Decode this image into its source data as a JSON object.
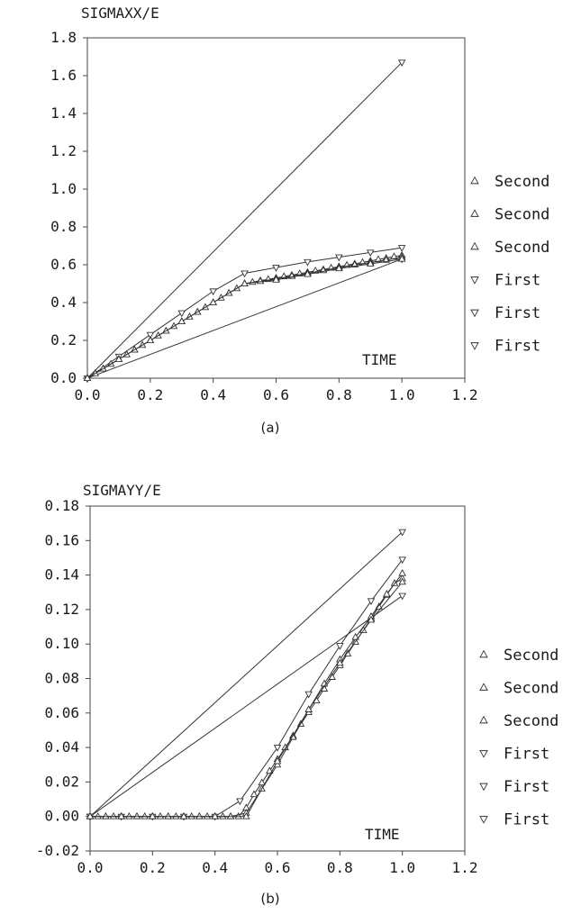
{
  "charts": [
    {
      "ylabel": "SIGMAXX/E",
      "xlabel": "TIME",
      "caption": "(a)",
      "xticks": [
        "0.0",
        "0.2",
        "0.4",
        "0.6",
        "0.8",
        "1.0",
        "1.2"
      ],
      "yticks": [
        "0.0",
        "0.2",
        "0.4",
        "0.6",
        "0.8",
        "1.0",
        "1.2",
        "1.4",
        "1.6",
        "1.8"
      ],
      "legend": [
        {
          "label": "Second",
          "marker": "triangle-up"
        },
        {
          "label": "Second",
          "marker": "triangle-up"
        },
        {
          "label": "Second",
          "marker": "triangle-up"
        },
        {
          "label": "First",
          "marker": "triangle-down"
        },
        {
          "label": "First",
          "marker": "triangle-down"
        },
        {
          "label": "First",
          "marker": "triangle-down"
        }
      ]
    },
    {
      "ylabel": "SIGMAYY/E",
      "xlabel": "TIME",
      "caption": "(b)",
      "xticks": [
        "0.0",
        "0.2",
        "0.4",
        "0.6",
        "0.8",
        "1.0",
        "1.2"
      ],
      "yticks": [
        "-0.02",
        "0.00",
        "0.02",
        "0.04",
        "0.06",
        "0.08",
        "0.10",
        "0.12",
        "0.14",
        "0.16",
        "0.18"
      ],
      "legend": [
        {
          "label": "Second",
          "marker": "triangle-up"
        },
        {
          "label": "Second",
          "marker": "triangle-up"
        },
        {
          "label": "Second",
          "marker": "triangle-up"
        },
        {
          "label": "First",
          "marker": "triangle-down"
        },
        {
          "label": "First",
          "marker": "triangle-down"
        },
        {
          "label": "First",
          "marker": "triangle-down"
        }
      ]
    }
  ],
  "chart_data": [
    {
      "type": "line",
      "ylabel": "SIGMAXX/E",
      "xlabel": "TIME",
      "xlim": [
        0,
        1.2
      ],
      "ylim": [
        0,
        1.8
      ],
      "grid": false,
      "legend_position": "right",
      "series": [
        {
          "name": "First",
          "marker": "triangle-down",
          "x": [
            0,
            1.0
          ],
          "y": [
            0,
            1.67
          ]
        },
        {
          "name": "First",
          "marker": "triangle-down",
          "x": [
            0,
            0.1,
            0.2,
            0.3,
            0.4,
            0.5,
            0.6,
            0.7,
            0.8,
            0.9,
            1.0
          ],
          "y": [
            0,
            0.115,
            0.23,
            0.345,
            0.46,
            0.555,
            0.585,
            0.615,
            0.64,
            0.665,
            0.69
          ]
        },
        {
          "name": "First",
          "marker": "triangle-down",
          "x": [
            0,
            1.0
          ],
          "y": [
            0,
            0.63
          ]
        },
        {
          "name": "Second",
          "marker": "triangle-up",
          "x": [
            0,
            0.025,
            0.05,
            0.075,
            0.1,
            0.125,
            0.15,
            0.175,
            0.2,
            0.225,
            0.25,
            0.275,
            0.3,
            0.325,
            0.35,
            0.375,
            0.4,
            0.425,
            0.45,
            0.475,
            0.5,
            0.525,
            0.55,
            0.575,
            0.6,
            0.625,
            0.65,
            0.675,
            0.7,
            0.725,
            0.75,
            0.775,
            0.8,
            0.825,
            0.85,
            0.875,
            0.9,
            0.925,
            0.95,
            0.975,
            1.0
          ],
          "y": [
            0,
            0.025,
            0.05,
            0.075,
            0.1,
            0.125,
            0.15,
            0.175,
            0.2,
            0.225,
            0.25,
            0.275,
            0.3,
            0.325,
            0.35,
            0.375,
            0.4,
            0.425,
            0.45,
            0.475,
            0.5,
            0.508,
            0.516,
            0.523,
            0.53,
            0.538,
            0.545,
            0.553,
            0.56,
            0.568,
            0.575,
            0.583,
            0.59,
            0.598,
            0.605,
            0.613,
            0.62,
            0.628,
            0.635,
            0.643,
            0.65
          ]
        },
        {
          "name": "Second",
          "marker": "triangle-up",
          "x": [
            0,
            0.05,
            0.1,
            0.15,
            0.2,
            0.25,
            0.3,
            0.35,
            0.4,
            0.45,
            0.5,
            0.55,
            0.6,
            0.65,
            0.7,
            0.75,
            0.8,
            0.85,
            0.9,
            0.95,
            1.0
          ],
          "y": [
            0,
            0.05,
            0.1,
            0.15,
            0.2,
            0.25,
            0.3,
            0.35,
            0.4,
            0.45,
            0.5,
            0.513,
            0.525,
            0.54,
            0.555,
            0.57,
            0.585,
            0.6,
            0.612,
            0.625,
            0.64
          ]
        },
        {
          "name": "Second",
          "marker": "triangle-up",
          "x": [
            0,
            0.1,
            0.2,
            0.3,
            0.4,
            0.5,
            0.6,
            0.7,
            0.8,
            0.9,
            1.0
          ],
          "y": [
            0,
            0.1,
            0.2,
            0.3,
            0.4,
            0.5,
            0.52,
            0.55,
            0.58,
            0.605,
            0.63
          ]
        }
      ]
    },
    {
      "type": "line",
      "ylabel": "SIGMAYY/E",
      "xlabel": "TIME",
      "xlim": [
        0,
        1.2
      ],
      "ylim": [
        -0.02,
        0.18
      ],
      "grid": false,
      "legend_position": "right",
      "series": [
        {
          "name": "First",
          "marker": "triangle-down",
          "x": [
            0,
            1.0
          ],
          "y": [
            0,
            0.165
          ]
        },
        {
          "name": "First",
          "marker": "triangle-down",
          "x": [
            0,
            1.0
          ],
          "y": [
            0,
            0.128
          ]
        },
        {
          "name": "First",
          "marker": "triangle-down",
          "x": [
            0,
            0.1,
            0.2,
            0.3,
            0.4,
            0.48,
            0.6,
            0.7,
            0.8,
            0.9,
            1.0
          ],
          "y": [
            0,
            0,
            0,
            0,
            0,
            0.009,
            0.04,
            0.071,
            0.099,
            0.125,
            0.149
          ]
        },
        {
          "name": "Second",
          "marker": "triangle-up",
          "x": [
            0,
            0.025,
            0.05,
            0.075,
            0.1,
            0.125,
            0.15,
            0.175,
            0.2,
            0.225,
            0.25,
            0.275,
            0.3,
            0.325,
            0.35,
            0.375,
            0.4,
            0.425,
            0.45,
            0.475,
            0.5,
            0.525,
            0.55,
            0.575,
            0.6,
            0.625,
            0.65,
            0.675,
            0.7,
            0.725,
            0.75,
            0.775,
            0.8,
            0.825,
            0.85,
            0.875,
            0.9,
            0.925,
            0.95,
            0.975,
            1.0
          ],
          "y": [
            0,
            0,
            0,
            0,
            0,
            0,
            0,
            0,
            0,
            0,
            0,
            0,
            0,
            0,
            0,
            0,
            0,
            0,
            0,
            0,
            0.005,
            0.0128,
            0.0196,
            0.0264,
            0.0332,
            0.04,
            0.0468,
            0.0536,
            0.0604,
            0.0672,
            0.074,
            0.0808,
            0.0876,
            0.0944,
            0.1012,
            0.108,
            0.1148,
            0.1216,
            0.1284,
            0.1352,
            0.138
          ]
        },
        {
          "name": "Second",
          "marker": "triangle-up",
          "x": [
            0,
            0.05,
            0.1,
            0.15,
            0.2,
            0.25,
            0.3,
            0.35,
            0.4,
            0.45,
            0.5,
            0.55,
            0.6,
            0.65,
            0.7,
            0.75,
            0.8,
            0.85,
            0.9,
            0.95,
            1.0
          ],
          "y": [
            0,
            0,
            0,
            0,
            0,
            0,
            0,
            0,
            0,
            0,
            0.002,
            0.016,
            0.03,
            0.046,
            0.062,
            0.077,
            0.091,
            0.104,
            0.116,
            0.129,
            0.141
          ]
        },
        {
          "name": "Second",
          "marker": "triangle-up",
          "x": [
            0,
            0.1,
            0.2,
            0.3,
            0.4,
            0.5,
            0.6,
            0.7,
            0.8,
            0.9,
            1.0
          ],
          "y": [
            0,
            0,
            0,
            0,
            0,
            0,
            0.032,
            0.062,
            0.089,
            0.114,
            0.136
          ]
        }
      ]
    }
  ]
}
